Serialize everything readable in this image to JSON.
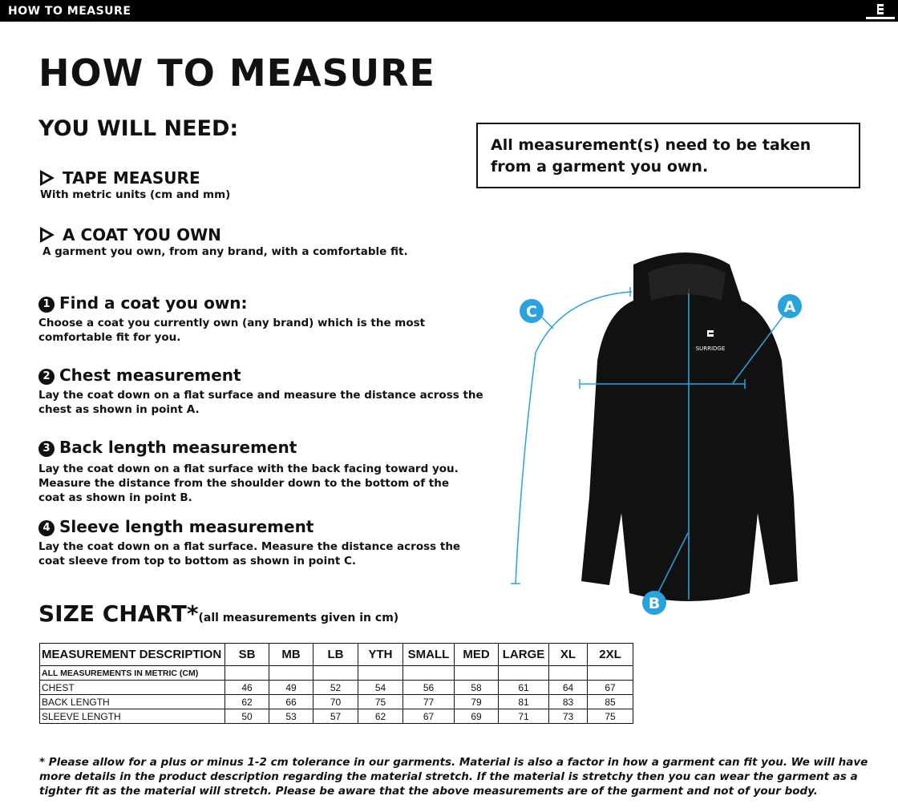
{
  "header": {
    "title": "HOW TO MEASURE",
    "logo_text": "SURRIDGE"
  },
  "page_title": "HOW TO MEASURE",
  "you_will_need": {
    "heading": "YOU WILL NEED:",
    "items": [
      {
        "title": "TAPE MEASURE",
        "desc": "With metric units (cm and mm)"
      },
      {
        "title": "A COAT YOU OWN",
        "desc": "A garment you own, from any brand, with a comfortable fit."
      }
    ]
  },
  "steps": [
    {
      "num": "1",
      "title": "Find a coat you own:",
      "desc": "Choose a coat you currently own (any brand) which is the most comfortable fit for you."
    },
    {
      "num": "2",
      "title": "Chest measurement",
      "desc": "Lay the coat down on a flat surface and measure the distance across the chest as shown in point A."
    },
    {
      "num": "3",
      "title": "Back length measurement",
      "desc": "Lay the coat down on a flat surface with the back facing toward you. Measure the distance from the shoulder down to the bottom of the coat as shown in point B."
    },
    {
      "num": "4",
      "title": "Sleeve length measurement",
      "desc": "Lay the coat down on a flat surface. Measure the distance across the coat sleeve from top to bottom as shown in point C."
    }
  ],
  "note": "All measurement(s) need to be taken from a garment you own.",
  "diagram": {
    "labels": [
      "A",
      "B",
      "C"
    ],
    "accent": "#29a3dd",
    "garment_logo": "SURRIDGE"
  },
  "size_chart": {
    "title": "SIZE CHART",
    "asterisk": "*",
    "subtitle": "(all measurements given in cm)",
    "header": [
      "MEASUREMENT DESCRIPTION",
      "SB",
      "MB",
      "LB",
      "YTH",
      "SMALL",
      "MED",
      "LARGE",
      "XL",
      "2XL"
    ],
    "subheader": "ALL MEASUREMENTS IN METRIC (CM)",
    "rows": [
      [
        "CHEST",
        "46",
        "49",
        "52",
        "54",
        "56",
        "58",
        "61",
        "64",
        "67"
      ],
      [
        "BACK LENGTH",
        "62",
        "66",
        "70",
        "75",
        "77",
        "79",
        "81",
        "83",
        "85"
      ],
      [
        "SLEEVE LENGTH",
        "50",
        "53",
        "57",
        "62",
        "67",
        "69",
        "71",
        "73",
        "75"
      ]
    ]
  },
  "footer": "* Please allow for a plus or minus 1-2 cm tolerance in our garments. Material is also a factor in how a garment can fit you. We will have more details in the product description regarding the material stretch.  If the material is stretchy then you can wear the garment as a tighter fit as the material will stretch.  Please be aware that the above measurements are of the garment and not of your body."
}
